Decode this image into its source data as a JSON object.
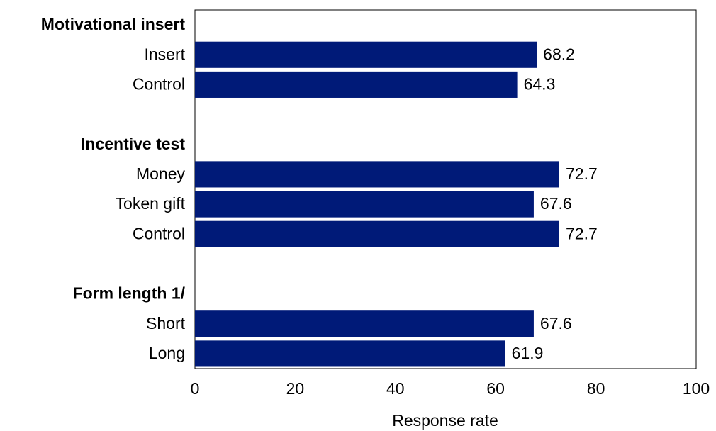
{
  "chart_data": {
    "type": "bar",
    "orientation": "horizontal",
    "xlabel": "Response rate",
    "categories": [
      "Motivational insert",
      "Insert",
      "Control",
      null,
      "Incentive test",
      "Money",
      "Token gift",
      "Control",
      null,
      "Form length 1/",
      "Short",
      "Long"
    ],
    "values": [
      null,
      68.2,
      64.3,
      null,
      null,
      72.7,
      67.6,
      72.7,
      null,
      null,
      67.6,
      61.9
    ],
    "color": "#001a78",
    "xlim": [
      0,
      100
    ],
    "xticks": [
      0,
      20,
      40,
      60,
      80,
      100
    ],
    "grid": false
  }
}
